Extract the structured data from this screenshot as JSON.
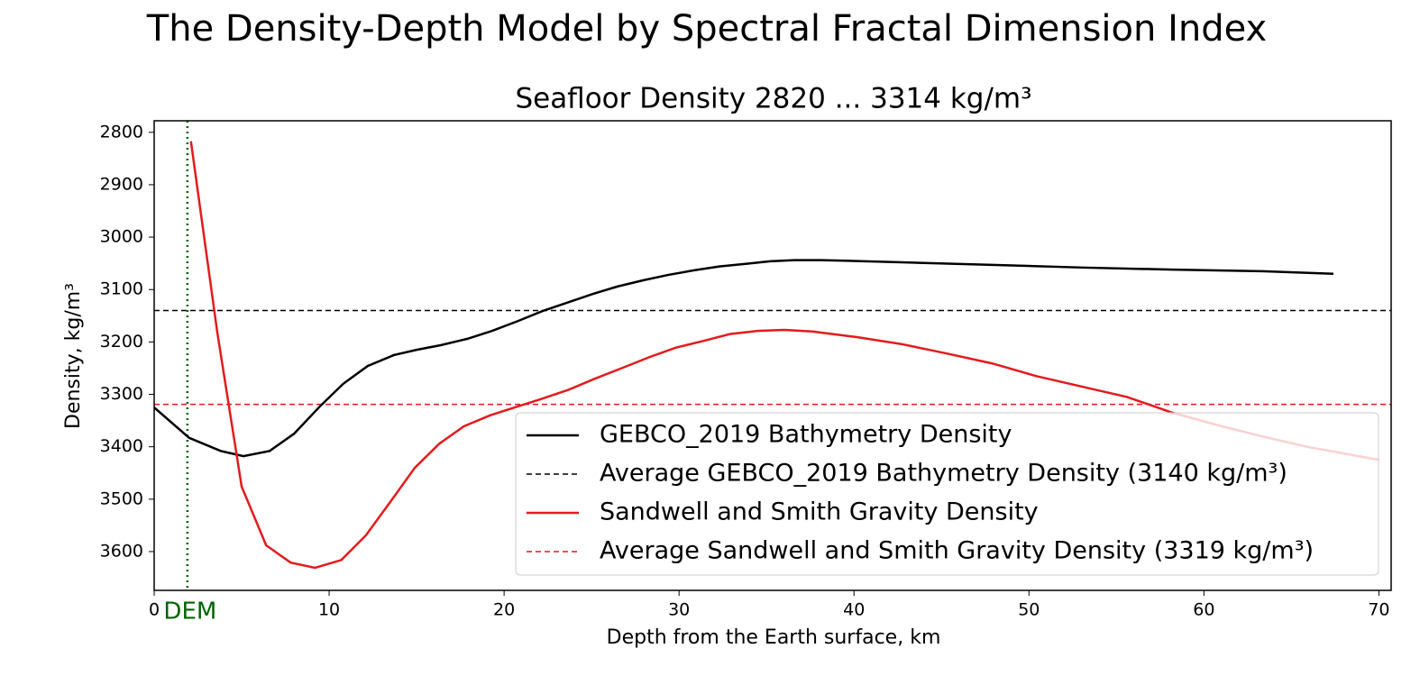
{
  "chart_data": {
    "type": "line",
    "title": "The Density-Depth Model by Spectral Fractal Dimension Index",
    "subtitle": "Seafloor Density 2820 ... 3314 kg/m³",
    "x_label": "Depth from the Earth surface, km",
    "y_label": "Density, kg/m³",
    "xlim": [
      0,
      70.7
    ],
    "xticks": [
      0,
      10,
      20,
      30,
      40,
      50,
      60,
      70
    ],
    "ylim": [
      2778,
      3674
    ],
    "y_inverted": true,
    "yticks": [
      2800,
      2900,
      3000,
      3100,
      3200,
      3300,
      3400,
      3500,
      3600
    ],
    "legend": "lower right",
    "series": [
      {
        "name": "GEBCO_2019 Bathymetry Density",
        "color": "#000000",
        "x": [
          0,
          2.0,
          3.8,
          5.1,
          6.6,
          8,
          9.5,
          10.8,
          12.2,
          13.7,
          15,
          16.4,
          17.9,
          19.3,
          20.8,
          22.2,
          23.7,
          25.1,
          26.5,
          28,
          29.4,
          30.9,
          32.3,
          33.8,
          35.2,
          36.6,
          38.1,
          39.5,
          42.7,
          47.9,
          53,
          58.2,
          63.3,
          67.4
        ],
        "values": [
          3325,
          3383,
          3408,
          3418,
          3408,
          3375,
          3322,
          3280,
          3246,
          3225,
          3215,
          3206,
          3194,
          3179,
          3160,
          3141,
          3124,
          3108,
          3094,
          3082,
          3072,
          3063,
          3056,
          3051,
          3046,
          3044,
          3044,
          3045,
          3048,
          3053,
          3058,
          3062,
          3065,
          3070
        ],
        "average": {
          "name": "Average GEBCO_2019 Bathymetry Density (3140 kg/m³)",
          "value": 3140
        }
      },
      {
        "name": "Sandwell and Smith Gravity Density",
        "color": "#e31a1c",
        "x": [
          2.1,
          3.6,
          5,
          6.4,
          7.8,
          9.2,
          10.7,
          12.1,
          13.5,
          14.9,
          16.3,
          17.7,
          19.2,
          20.6,
          22.1,
          23.7,
          25.2,
          26.8,
          28.3,
          29.8,
          31.4,
          32.9,
          34.5,
          36,
          37.6,
          40.2,
          42.7,
          45.3,
          47.9,
          50.4,
          53,
          55.6,
          58.2,
          60.7,
          63.3,
          65.9,
          70
        ],
        "values": [
          2817,
          3180,
          3476,
          3588,
          3621,
          3631,
          3616,
          3569,
          3505,
          3440,
          3394,
          3361,
          3340,
          3325,
          3309,
          3291,
          3270,
          3249,
          3229,
          3211,
          3198,
          3185,
          3179,
          3177,
          3180,
          3191,
          3204,
          3222,
          3241,
          3265,
          3285,
          3305,
          3335,
          3358,
          3380,
          3400,
          3425
        ],
        "average": {
          "name": "Average Sandwell and Smith Gravity Density (3319 kg/m³)",
          "value": 3319
        }
      }
    ],
    "vline": {
      "value": 1.9,
      "label": "DEM",
      "color": "#006400"
    }
  }
}
